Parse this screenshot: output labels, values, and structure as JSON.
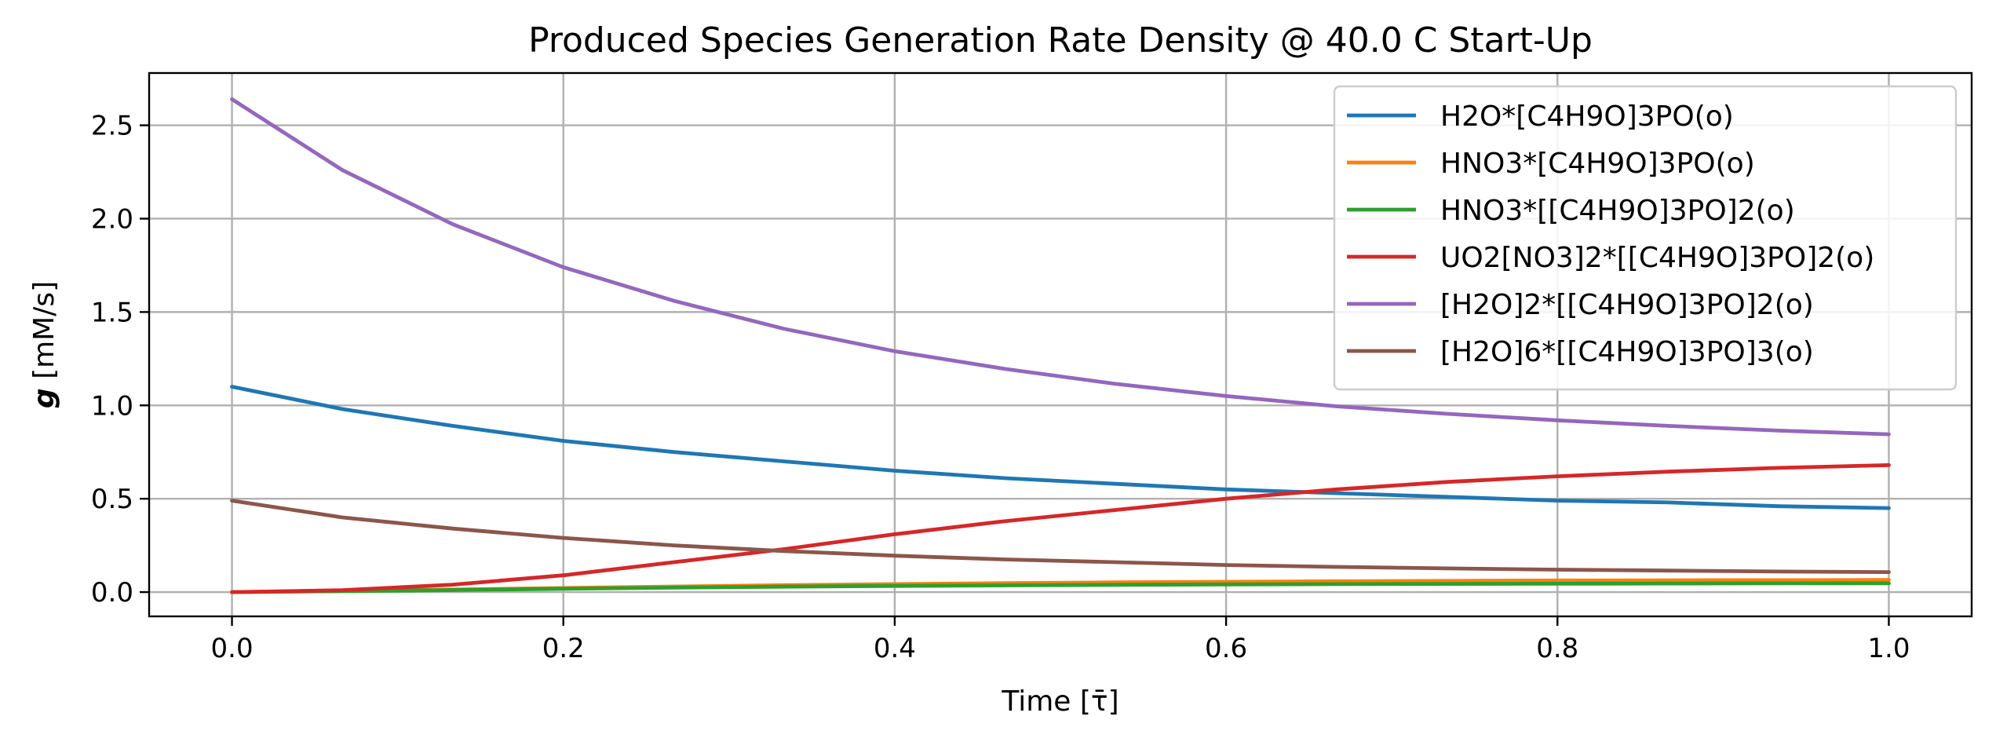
{
  "chart_data": {
    "type": "line",
    "title": "Produced Species Generation Rate Density @ 40.0 C Start-Up",
    "xlabel": "Time [τ̄]",
    "ylabel_symbol": "g",
    "ylabel_units": " [mM/s]",
    "xlim": [
      -0.05,
      1.05
    ],
    "ylim": [
      -0.13,
      2.78
    ],
    "xticks": [
      0.0,
      0.2,
      0.4,
      0.6,
      0.8,
      1.0
    ],
    "xtick_labels": [
      "0.0",
      "0.2",
      "0.4",
      "0.6",
      "0.8",
      "1.0"
    ],
    "yticks": [
      0.0,
      0.5,
      1.0,
      1.5,
      2.0,
      2.5
    ],
    "ytick_labels": [
      "0.0",
      "0.5",
      "1.0",
      "1.5",
      "2.0",
      "2.5"
    ],
    "grid": true,
    "legend_position": "upper right",
    "x": [
      0.0,
      0.0667,
      0.1333,
      0.2,
      0.2667,
      0.3333,
      0.4,
      0.4667,
      0.5333,
      0.6,
      0.6667,
      0.7333,
      0.8,
      0.8667,
      0.9333,
      1.0
    ],
    "series": [
      {
        "name": "H2O*[C4H9O]3PO(o)",
        "color": "#1f77b4",
        "values": [
          1.1,
          0.98,
          0.89,
          0.81,
          0.75,
          0.7,
          0.65,
          0.61,
          0.58,
          0.55,
          0.53,
          0.51,
          0.49,
          0.48,
          0.46,
          0.45
        ]
      },
      {
        "name": "HNO3*[C4H9O]3PO(o)",
        "color": "#ff7f0e",
        "values": [
          0.0,
          0.006,
          0.014,
          0.022,
          0.03,
          0.037,
          0.043,
          0.048,
          0.052,
          0.055,
          0.058,
          0.06,
          0.062,
          0.063,
          0.064,
          0.065
        ]
      },
      {
        "name": "HNO3*[[C4H9O]3PO]2(o)",
        "color": "#2ca02c",
        "values": [
          0.0,
          0.005,
          0.011,
          0.018,
          0.024,
          0.029,
          0.033,
          0.036,
          0.039,
          0.041,
          0.043,
          0.044,
          0.045,
          0.046,
          0.047,
          0.047
        ]
      },
      {
        "name": "UO2[NO3]2*[[C4H9O]3PO]2(o)",
        "color": "#d62728",
        "values": [
          0.0,
          0.01,
          0.04,
          0.09,
          0.16,
          0.23,
          0.31,
          0.38,
          0.44,
          0.5,
          0.55,
          0.59,
          0.62,
          0.645,
          0.665,
          0.68
        ]
      },
      {
        "name": "[H2O]2*[[C4H9O]3PO]2(o)",
        "color": "#9467bd",
        "values": [
          2.64,
          2.26,
          1.97,
          1.74,
          1.56,
          1.41,
          1.29,
          1.195,
          1.115,
          1.05,
          0.995,
          0.955,
          0.92,
          0.89,
          0.865,
          0.845
        ]
      },
      {
        "name": "[H2O]6*[[C4H9O]3PO]3(o)",
        "color": "#8c564b",
        "values": [
          0.49,
          0.4,
          0.34,
          0.29,
          0.25,
          0.22,
          0.195,
          0.175,
          0.16,
          0.145,
          0.135,
          0.127,
          0.12,
          0.115,
          0.11,
          0.107
        ]
      }
    ]
  }
}
